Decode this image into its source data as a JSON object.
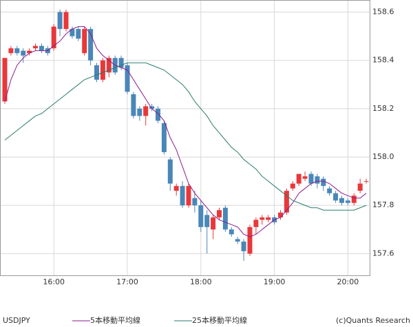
{
  "chart_data": {
    "type": "candlestick",
    "symbol": "USDJPY",
    "source": "(c)Quants Research",
    "categories": [
      null,
      null,
      null,
      null,
      null,
      null,
      null,
      null,
      "16:00",
      null,
      null,
      null,
      null,
      null,
      null,
      null,
      null,
      null,
      null,
      null,
      "17:00",
      null,
      null,
      null,
      null,
      null,
      null,
      null,
      null,
      null,
      null,
      null,
      "18:00",
      null,
      null,
      null,
      null,
      null,
      null,
      null,
      null,
      null,
      null,
      null,
      "19:00",
      null,
      null,
      null,
      null,
      null,
      null,
      null,
      null,
      null,
      null,
      null,
      "20:00",
      null,
      null,
      null
    ],
    "open": [
      158.23,
      158.43,
      158.45,
      158.44,
      158.43,
      158.45,
      158.46,
      158.45,
      158.45,
      158.6,
      158.53,
      158.53,
      158.53,
      158.43,
      158.53,
      158.38,
      158.32,
      158.35,
      158.41,
      158.41,
      158.38,
      158.26,
      158.2,
      158.17,
      158.21,
      158.2,
      158.14,
      157.99,
      157.86,
      157.88,
      157.8,
      157.83,
      157.8,
      157.76,
      157.7,
      157.75,
      157.79,
      157.7,
      157.66,
      157.65,
      157.6,
      157.71,
      157.74,
      157.74,
      157.75,
      157.75,
      157.77,
      157.87,
      157.89,
      157.91,
      157.93,
      157.92,
      157.91,
      157.87,
      157.85,
      157.83,
      157.82,
      157.81,
      157.86,
      157.9
    ],
    "high": [
      158.41,
      158.46,
      158.46,
      158.45,
      158.45,
      158.47,
      158.47,
      158.46,
      158.55,
      158.61,
      158.61,
      158.54,
      158.54,
      158.54,
      158.54,
      158.39,
      158.41,
      158.42,
      158.42,
      158.42,
      158.39,
      158.27,
      158.21,
      158.22,
      158.22,
      158.21,
      158.15,
      158.0,
      157.89,
      157.9,
      157.89,
      157.86,
      157.82,
      157.78,
      157.76,
      157.79,
      157.8,
      157.71,
      157.67,
      157.66,
      157.72,
      157.75,
      157.76,
      157.76,
      157.76,
      157.78,
      157.87,
      157.9,
      157.93,
      157.94,
      157.94,
      157.93,
      157.92,
      157.88,
      157.86,
      157.84,
      157.83,
      157.85,
      157.91,
      157.91
    ],
    "low": [
      158.22,
      158.42,
      158.42,
      158.39,
      158.42,
      158.44,
      158.43,
      158.42,
      158.44,
      158.5,
      158.52,
      158.49,
      158.48,
      158.42,
      158.38,
      158.31,
      158.31,
      158.33,
      158.34,
      158.36,
      158.26,
      158.16,
      158.15,
      158.13,
      158.19,
      158.14,
      158.01,
      157.86,
      157.84,
      157.79,
      157.79,
      157.77,
      157.69,
      157.6,
      157.66,
      157.74,
      157.69,
      157.67,
      157.64,
      157.57,
      157.59,
      157.68,
      157.72,
      157.73,
      157.72,
      157.74,
      157.76,
      157.86,
      157.88,
      157.9,
      157.88,
      157.87,
      157.86,
      157.84,
      157.81,
      157.8,
      157.8,
      157.8,
      157.85,
      157.89
    ],
    "close": [
      158.41,
      158.45,
      158.43,
      158.42,
      158.44,
      158.46,
      158.44,
      158.43,
      158.54,
      158.53,
      158.6,
      158.5,
      158.49,
      158.53,
      158.4,
      158.32,
      158.4,
      158.41,
      158.35,
      158.37,
      158.27,
      158.17,
      158.17,
      158.21,
      158.2,
      158.15,
      158.02,
      157.89,
      157.88,
      157.8,
      157.88,
      157.8,
      157.71,
      157.71,
      157.75,
      157.78,
      157.7,
      157.68,
      157.65,
      157.61,
      157.71,
      157.74,
      157.75,
      157.75,
      157.73,
      157.77,
      157.86,
      157.89,
      157.93,
      157.92,
      157.89,
      157.89,
      157.88,
      157.85,
      157.82,
      157.81,
      157.81,
      157.84,
      157.89,
      157.9
    ],
    "up_color": "#e8383a",
    "down_color": "#4a86b8",
    "lines": [
      {
        "name": "5本移動平均線",
        "color": "#8b1a8b",
        "values": [
          158.23,
          158.32,
          158.38,
          158.41,
          158.43,
          158.44,
          158.44,
          158.44,
          158.46,
          158.48,
          158.51,
          158.53,
          158.54,
          158.54,
          158.51,
          158.45,
          158.42,
          158.4,
          158.38,
          158.37,
          158.36,
          158.32,
          158.28,
          158.24,
          158.2,
          158.18,
          158.15,
          158.08,
          158.03,
          157.96,
          157.89,
          157.85,
          157.82,
          157.79,
          157.76,
          157.74,
          157.73,
          157.72,
          157.71,
          157.68,
          157.67,
          157.68,
          157.7,
          157.72,
          157.74,
          157.75,
          157.78,
          157.81,
          157.85,
          157.87,
          157.89,
          157.9,
          157.9,
          157.89,
          157.87,
          157.85,
          157.84,
          157.83,
          157.83,
          157.85
        ]
      },
      {
        "name": "25本移動平均線",
        "color": "#2a7a6a",
        "values": [
          158.07,
          158.09,
          158.11,
          158.13,
          158.15,
          158.17,
          158.18,
          158.2,
          158.22,
          158.24,
          158.26,
          158.28,
          158.3,
          158.32,
          158.33,
          158.34,
          158.35,
          158.36,
          158.37,
          158.38,
          158.39,
          158.39,
          158.39,
          158.39,
          158.38,
          158.37,
          158.36,
          158.34,
          158.32,
          158.3,
          158.27,
          158.23,
          158.2,
          158.17,
          158.13,
          158.1,
          158.07,
          158.04,
          158.02,
          157.99,
          157.97,
          157.95,
          157.92,
          157.9,
          157.88,
          157.86,
          157.84,
          157.82,
          157.81,
          157.8,
          157.79,
          157.79,
          157.78,
          157.78,
          157.78,
          157.78,
          157.78,
          157.78,
          157.79,
          157.8
        ]
      }
    ],
    "ylim": [
      157.51,
      158.65
    ],
    "yticks": [
      157.6,
      157.8,
      {
        "value": 158,
        "label": "158.0"
      },
      158.2,
      158.4,
      158.6
    ],
    "grid": true
  }
}
